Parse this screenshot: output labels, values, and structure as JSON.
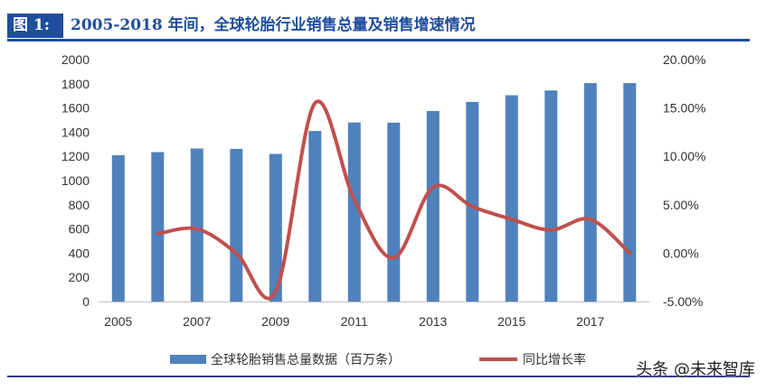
{
  "header": {
    "figure_label": "图 1:",
    "title": "2005-2018 年间，全球轮胎行业销售总量及销售增速情况"
  },
  "watermark": "头条 @未来智库",
  "colors": {
    "bar": "#4F81BD",
    "line": "#C0504D",
    "title_blue": "#1F4E9C",
    "axis": "#BFBFBF"
  },
  "chart_data": {
    "type": "bar",
    "categories": [
      "2005",
      "2006",
      "2007",
      "2008",
      "2009",
      "2010",
      "2011",
      "2012",
      "2013",
      "2014",
      "2015",
      "2016",
      "2017",
      "2018"
    ],
    "x_tick_labels": [
      "2005",
      "",
      "2007",
      "",
      "2009",
      "",
      "2011",
      "",
      "2013",
      "",
      "2015",
      "",
      "2017",
      ""
    ],
    "y_left": {
      "ylim": [
        0,
        2000
      ],
      "ticks": [
        "0",
        "200",
        "400",
        "600",
        "800",
        "1000",
        "1200",
        "1400",
        "1600",
        "1800",
        "2000"
      ]
    },
    "y_right": {
      "ylim": [
        -5,
        20
      ],
      "ticks": [
        "-5.00%",
        "0.00%",
        "5.00%",
        "10.00%",
        "15.00%",
        "20.00%"
      ]
    },
    "series": [
      {
        "name": "全球轮胎销售总量数据（百万条）",
        "type": "bar",
        "axis": "left",
        "values": [
          1210,
          1235,
          1265,
          1262,
          1220,
          1410,
          1480,
          1478,
          1575,
          1650,
          1705,
          1745,
          1805,
          1805
        ]
      },
      {
        "name": "同比增长率",
        "type": "line",
        "axis": "right",
        "values": [
          null,
          2.0,
          2.5,
          0.0,
          -4.0,
          15.5,
          5.5,
          -0.5,
          6.8,
          4.8,
          3.5,
          2.4,
          3.5,
          0.0
        ]
      }
    ],
    "legend": "bottom-center",
    "grid": false
  }
}
